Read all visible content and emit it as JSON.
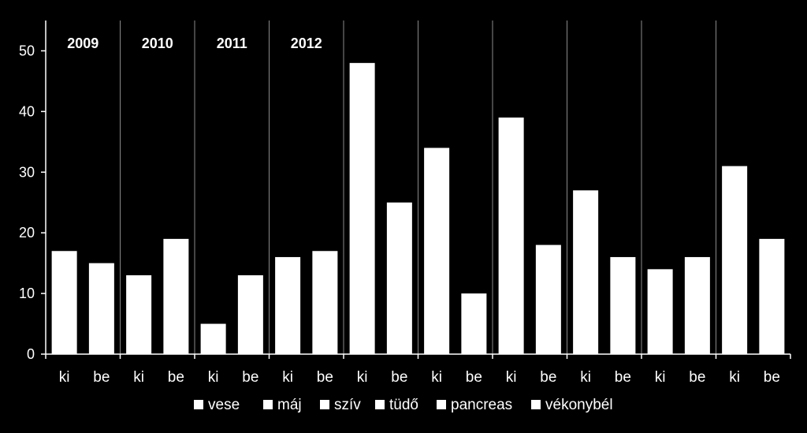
{
  "chart_data": {
    "type": "bar",
    "categories": [
      "ki",
      "be",
      "ki",
      "be",
      "ki",
      "be",
      "ki",
      "be",
      "ki",
      "be",
      "ki",
      "be",
      "ki",
      "be",
      "ki",
      "be",
      "ki",
      "be",
      "ki",
      "be"
    ],
    "values": [
      17,
      15,
      13,
      19,
      5,
      13,
      16,
      17,
      48,
      25,
      34,
      10,
      39,
      18,
      27,
      16,
      14,
      16,
      31,
      19
    ],
    "ylim": [
      0,
      55
    ],
    "yticks": [
      0,
      10,
      20,
      30,
      40,
      50
    ],
    "group_labels": [
      "2009",
      "2010",
      "2011",
      "2012",
      "",
      "",
      "",
      "",
      "",
      ""
    ],
    "legend": [
      "vese",
      "máj",
      "szív",
      "tüdő",
      "pancreas",
      "vékonybél"
    ],
    "legend_placement": "bottom",
    "grid": false,
    "colors": {
      "background": "#000000",
      "bar": "#ffffff",
      "axis": "#ffffff",
      "divider": "#8a8a8a"
    }
  }
}
